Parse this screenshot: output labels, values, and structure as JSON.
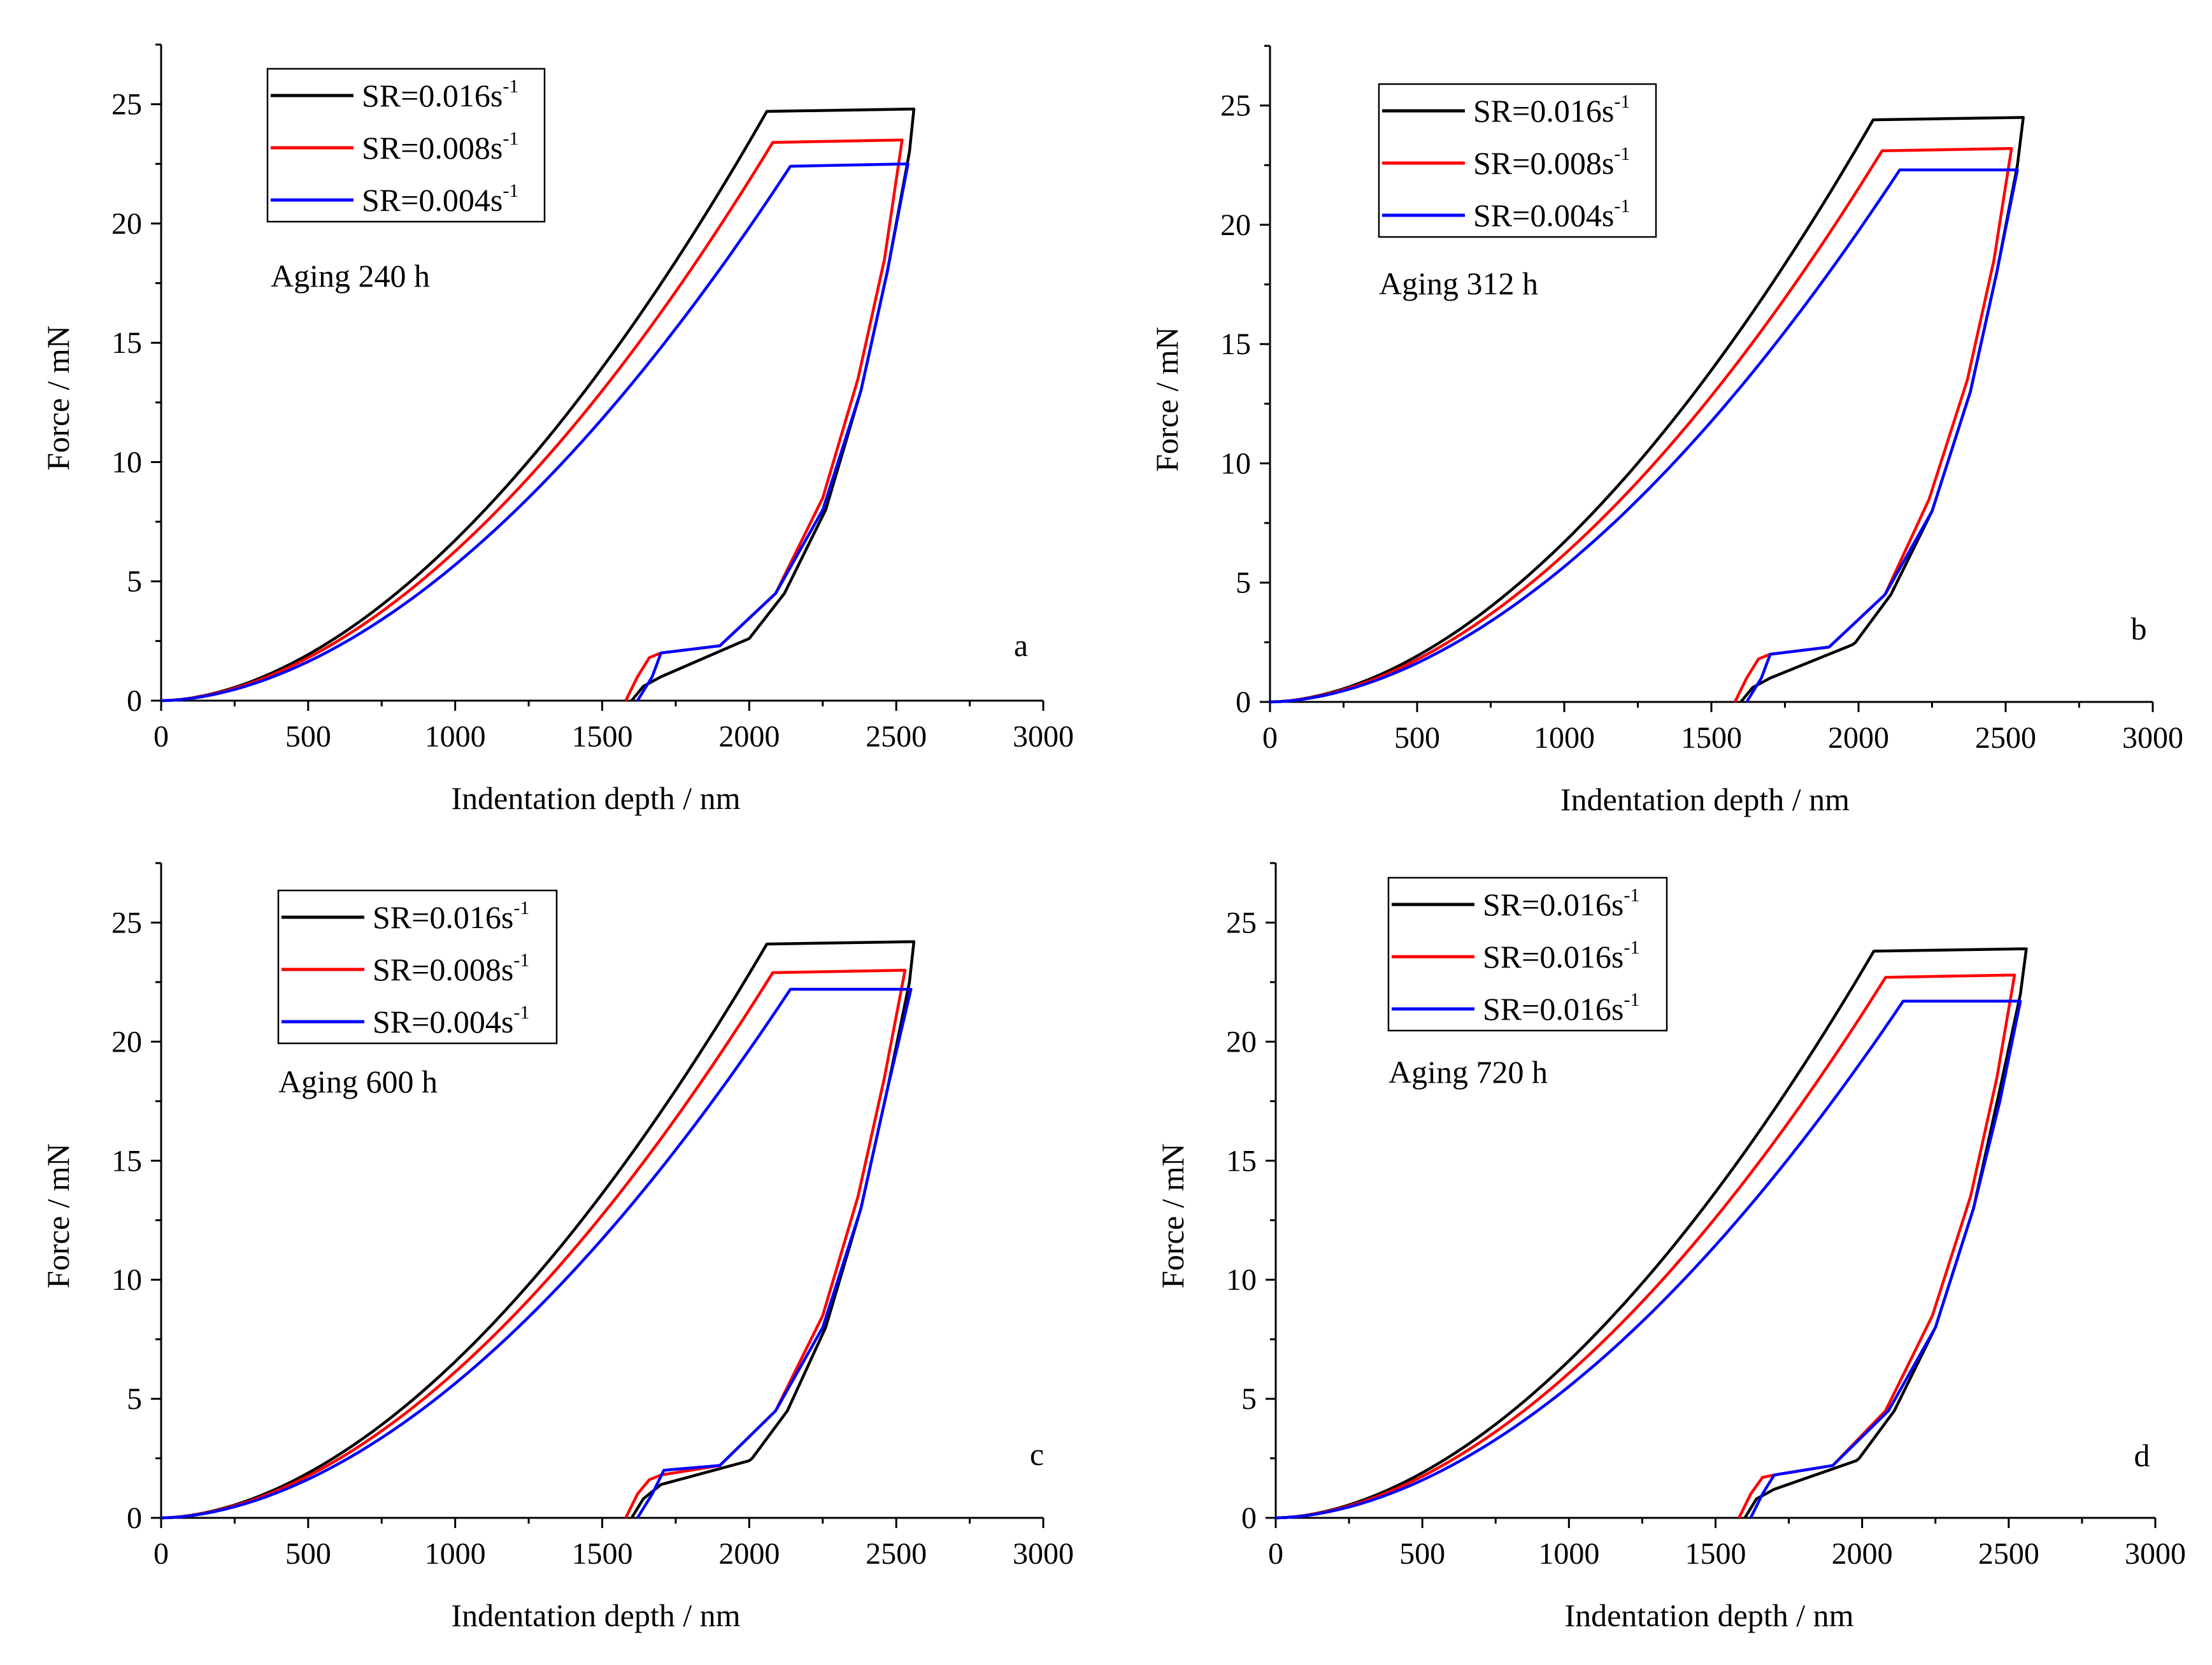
{
  "chart_data": [
    {
      "type": "line",
      "panel_label": "a",
      "annotation": "Aging 240 h",
      "xlabel": "Indentation depth / nm",
      "ylabel": "Force / mN",
      "xlim": [
        0,
        3000
      ],
      "ylim": [
        0,
        27.5
      ],
      "xticks": [
        0,
        500,
        1000,
        1500,
        2000,
        2500,
        3000
      ],
      "yticks": [
        0,
        5,
        10,
        15,
        20,
        25
      ],
      "legend": [
        {
          "text": "SR=0.016s",
          "sup": "-1",
          "color": "#000000"
        },
        {
          "text": "SR=0.008s",
          "sup": "-1",
          "color": "#ff0000"
        },
        {
          "text": "SR=0.004s",
          "sup": "-1",
          "color": "#0000ff"
        }
      ],
      "series": [
        {
          "name": "SR=0.016s-1",
          "color": "#000000",
          "h_load_end": 2060,
          "f_max": 24.7,
          "h_hold_end": 2560,
          "f_hold_end": 24.8,
          "unload": [
            [
              2560,
              24.8
            ],
            [
              2545,
              23.0
            ],
            [
              2470,
              18.0
            ],
            [
              2380,
              13.0
            ],
            [
              2260,
              8.0
            ],
            [
              2120,
              4.5
            ],
            [
              2000,
              2.6
            ],
            [
              1980,
              2.5
            ],
            [
              1700,
              1.0
            ],
            [
              1640,
              0.6
            ],
            [
              1600,
              0.0
            ]
          ]
        },
        {
          "name": "SR=0.008s-1",
          "color": "#ff0000",
          "h_load_end": 2080,
          "f_max": 23.4,
          "h_hold_end": 2520,
          "f_hold_end": 23.5,
          "unload": [
            [
              2520,
              23.5
            ],
            [
              2460,
              18.5
            ],
            [
              2370,
              13.5
            ],
            [
              2250,
              8.5
            ],
            [
              2090,
              4.5
            ],
            [
              1900,
              2.3
            ],
            [
              1700,
              2.0
            ],
            [
              1660,
              1.8
            ],
            [
              1620,
              1.0
            ],
            [
              1580,
              0.0
            ]
          ]
        },
        {
          "name": "SR=0.004s-1",
          "color": "#0000ff",
          "h_load_end": 2140,
          "f_max": 22.4,
          "h_hold_end": 2540,
          "f_hold_end": 22.5,
          "unload": [
            [
              2540,
              22.5
            ],
            [
              2470,
              18.0
            ],
            [
              2380,
              13.0
            ],
            [
              2250,
              8.0
            ],
            [
              2090,
              4.5
            ],
            [
              1900,
              2.3
            ],
            [
              1700,
              2.0
            ],
            [
              1670,
              1.0
            ],
            [
              1620,
              0.0
            ]
          ]
        }
      ]
    },
    {
      "type": "line",
      "panel_label": "b",
      "annotation": "Aging 312 h",
      "xlabel": "Indentation depth / nm",
      "ylabel": "Force / mN",
      "xlim": [
        0,
        3000
      ],
      "ylim": [
        0,
        27.5
      ],
      "xticks": [
        0,
        500,
        1000,
        1500,
        2000,
        2500,
        3000
      ],
      "yticks": [
        0,
        5,
        10,
        15,
        20,
        25
      ],
      "legend": [
        {
          "text": "SR=0.016s",
          "sup": "-1",
          "color": "#000000"
        },
        {
          "text": "SR=0.008s",
          "sup": "-1",
          "color": "#ff0000"
        },
        {
          "text": "SR=0.004s",
          "sup": "-1",
          "color": "#0000ff"
        }
      ],
      "series": [
        {
          "name": "SR=0.016s-1",
          "color": "#000000",
          "h_load_end": 2050,
          "f_max": 24.4,
          "h_hold_end": 2560,
          "f_hold_end": 24.5,
          "unload": [
            [
              2560,
              24.5
            ],
            [
              2540,
              22.5
            ],
            [
              2470,
              18.0
            ],
            [
              2380,
              13.0
            ],
            [
              2250,
              8.0
            ],
            [
              2110,
              4.5
            ],
            [
              1990,
              2.5
            ],
            [
              1980,
              2.4
            ],
            [
              1700,
              1.0
            ],
            [
              1640,
              0.6
            ],
            [
              1600,
              0.0
            ]
          ]
        },
        {
          "name": "SR=0.008s-1",
          "color": "#ff0000",
          "h_load_end": 2080,
          "f_max": 23.1,
          "h_hold_end": 2520,
          "f_hold_end": 23.2,
          "unload": [
            [
              2520,
              23.2
            ],
            [
              2460,
              18.5
            ],
            [
              2370,
              13.5
            ],
            [
              2240,
              8.5
            ],
            [
              2090,
              4.5
            ],
            [
              1900,
              2.3
            ],
            [
              1700,
              2.0
            ],
            [
              1660,
              1.8
            ],
            [
              1620,
              1.0
            ],
            [
              1580,
              0.0
            ]
          ]
        },
        {
          "name": "SR=0.004s-1",
          "color": "#0000ff",
          "h_load_end": 2140,
          "f_max": 22.3,
          "h_hold_end": 2540,
          "f_hold_end": 22.3,
          "unload": [
            [
              2540,
              22.3
            ],
            [
              2470,
              18.0
            ],
            [
              2380,
              13.0
            ],
            [
              2250,
              8.0
            ],
            [
              2090,
              4.5
            ],
            [
              1900,
              2.3
            ],
            [
              1700,
              2.0
            ],
            [
              1670,
              1.0
            ],
            [
              1620,
              0.0
            ]
          ]
        }
      ]
    },
    {
      "type": "line",
      "panel_label": "c",
      "annotation": "Aging 600 h",
      "xlabel": "Indentation depth / nm",
      "ylabel": "Force / mN",
      "xlim": [
        0,
        3000
      ],
      "ylim": [
        0,
        27.5
      ],
      "xticks": [
        0,
        500,
        1000,
        1500,
        2000,
        2500,
        3000
      ],
      "yticks": [
        0,
        5,
        10,
        15,
        20,
        25
      ],
      "legend": [
        {
          "text": "SR=0.016s",
          "sup": "-1",
          "color": "#000000"
        },
        {
          "text": "SR=0.008s",
          "sup": "-1",
          "color": "#ff0000"
        },
        {
          "text": "SR=0.004s",
          "sup": "-1",
          "color": "#0000ff"
        }
      ],
      "series": [
        {
          "name": "SR=0.016s-1",
          "color": "#000000",
          "h_load_end": 2060,
          "f_max": 24.1,
          "h_hold_end": 2560,
          "f_hold_end": 24.2,
          "unload": [
            [
              2560,
              24.2
            ],
            [
              2545,
              22.5
            ],
            [
              2470,
              18.0
            ],
            [
              2380,
              13.0
            ],
            [
              2260,
              8.0
            ],
            [
              2130,
              4.5
            ],
            [
              2010,
              2.5
            ],
            [
              2000,
              2.4
            ],
            [
              1700,
              1.4
            ],
            [
              1640,
              0.8
            ],
            [
              1600,
              0.0
            ]
          ]
        },
        {
          "name": "SR=0.008s-1",
          "color": "#ff0000",
          "h_load_end": 2080,
          "f_max": 22.9,
          "h_hold_end": 2530,
          "f_hold_end": 23.0,
          "unload": [
            [
              2530,
              23.0
            ],
            [
              2460,
              18.5
            ],
            [
              2370,
              13.5
            ],
            [
              2250,
              8.5
            ],
            [
              2090,
              4.5
            ],
            [
              1900,
              2.2
            ],
            [
              1700,
              1.8
            ],
            [
              1660,
              1.6
            ],
            [
              1620,
              1.0
            ],
            [
              1580,
              0.0
            ]
          ]
        },
        {
          "name": "SR=0.004s-1",
          "color": "#0000ff",
          "h_load_end": 2140,
          "f_max": 22.2,
          "h_hold_end": 2550,
          "f_hold_end": 22.2,
          "unload": [
            [
              2550,
              22.2
            ],
            [
              2470,
              18.0
            ],
            [
              2380,
              13.0
            ],
            [
              2250,
              8.0
            ],
            [
              2090,
              4.5
            ],
            [
              1900,
              2.2
            ],
            [
              1710,
              2.0
            ],
            [
              1670,
              1.0
            ],
            [
              1620,
              0.0
            ]
          ]
        }
      ]
    },
    {
      "type": "line",
      "panel_label": "d",
      "annotation": "Aging 720 h",
      "xlabel": "Indentation depth / nm",
      "ylabel": "Force / mN",
      "xlim": [
        0,
        3000
      ],
      "ylim": [
        0,
        27.5
      ],
      "xticks": [
        0,
        500,
        1000,
        1500,
        2000,
        2500,
        3000
      ],
      "yticks": [
        0,
        5,
        10,
        15,
        20,
        25
      ],
      "legend": [
        {
          "text": "SR=0.016s",
          "sup": "-1",
          "color": "#000000"
        },
        {
          "text": "SR=0.016s",
          "sup": "-1",
          "color": "#ff0000"
        },
        {
          "text": "SR=0.016s",
          "sup": "-1",
          "color": "#0000ff"
        }
      ],
      "series": [
        {
          "name": "SR=0.016s-1 (black)",
          "color": "#000000",
          "h_load_end": 2040,
          "f_max": 23.8,
          "h_hold_end": 2560,
          "f_hold_end": 23.9,
          "unload": [
            [
              2560,
              23.9
            ],
            [
              2540,
              22.0
            ],
            [
              2470,
              18.0
            ],
            [
              2380,
              13.0
            ],
            [
              2250,
              8.0
            ],
            [
              2110,
              4.5
            ],
            [
              1990,
              2.5
            ],
            [
              1980,
              2.4
            ],
            [
              1700,
              1.2
            ],
            [
              1640,
              0.8
            ],
            [
              1600,
              0.0
            ]
          ]
        },
        {
          "name": "SR=0.016s-1 (red)",
          "color": "#ff0000",
          "h_load_end": 2080,
          "f_max": 22.7,
          "h_hold_end": 2520,
          "f_hold_end": 22.8,
          "unload": [
            [
              2520,
              22.8
            ],
            [
              2460,
              18.5
            ],
            [
              2370,
              13.5
            ],
            [
              2240,
              8.5
            ],
            [
              2080,
              4.5
            ],
            [
              1900,
              2.2
            ],
            [
              1700,
              1.8
            ],
            [
              1660,
              1.7
            ],
            [
              1620,
              1.0
            ],
            [
              1580,
              0.0
            ]
          ]
        },
        {
          "name": "SR=0.016s-1 (blue)",
          "color": "#0000ff",
          "h_load_end": 2140,
          "f_max": 21.7,
          "h_hold_end": 2540,
          "f_hold_end": 21.7,
          "unload": [
            [
              2540,
              21.7
            ],
            [
              2470,
              17.5
            ],
            [
              2380,
              13.0
            ],
            [
              2250,
              8.0
            ],
            [
              2090,
              4.5
            ],
            [
              1900,
              2.2
            ],
            [
              1700,
              1.8
            ],
            [
              1660,
              1.0
            ],
            [
              1620,
              0.0
            ]
          ]
        }
      ]
    }
  ]
}
